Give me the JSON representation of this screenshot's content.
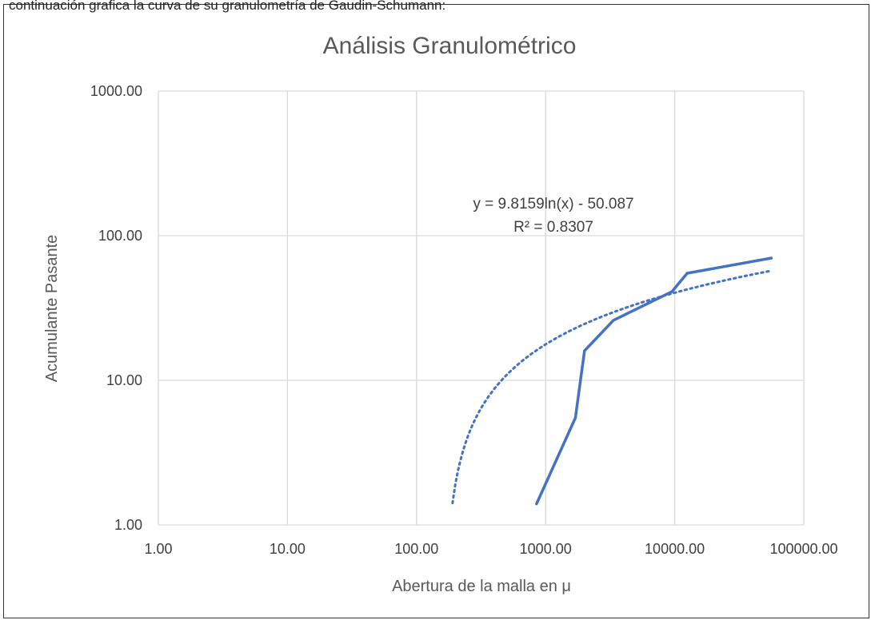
{
  "caption_clipped": "continuación grafica la curva de su granulometría de Gaudin-Schumann:",
  "chart_data": {
    "type": "scatter",
    "title": "Análisis Granulométrico",
    "xlabel": "Abertura de la malla en μ",
    "ylabel": "Acumulante Pasante",
    "x_scale": "log",
    "y_scale": "log",
    "xlim": [
      1,
      100000
    ],
    "ylim": [
      1,
      1000
    ],
    "x_ticks": [
      "1.00",
      "10.00",
      "100.00",
      "1000.00",
      "10000.00",
      "100000.00"
    ],
    "y_ticks": [
      "1.00",
      "10.00",
      "100.00",
      "1000.00"
    ],
    "grid": true,
    "series": [
      {
        "color": "#4472C4",
        "style": "solid",
        "points": [
          [
            850,
            1.4
          ],
          [
            1700,
            5.5
          ],
          [
            2000,
            16.0
          ],
          [
            3350,
            26.0
          ],
          [
            9500,
            41.0
          ],
          [
            12500,
            55.0
          ],
          [
            56000,
            70.0
          ]
        ]
      }
    ],
    "trendline": {
      "type": "logarithmic",
      "a": 9.8159,
      "b": -50.087,
      "x_range": [
        190,
        56000
      ],
      "color": "#4472C4",
      "style": "dotted",
      "equation_label": "y = 9.8159ln(x) - 50.087",
      "r2_label": "R² = 0.8307"
    }
  }
}
